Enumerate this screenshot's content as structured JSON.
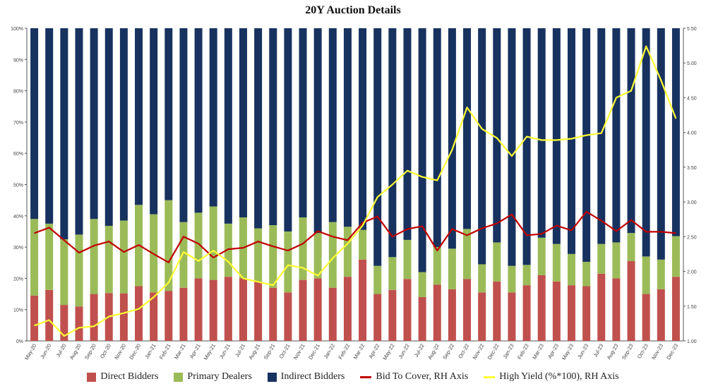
{
  "chart_data": {
    "type": "bar",
    "title": "20Y Auction Details",
    "categories": [
      "May-20",
      "Jun-20",
      "Jul-20",
      "Aug-20",
      "Sep-20",
      "Oct-20",
      "Nov-20",
      "Dec-20",
      "Jan-21",
      "Feb-21",
      "Mar-21",
      "Apr-21",
      "May-21",
      "Jun-21",
      "Jul-21",
      "Aug-21",
      "Sep-21",
      "Oct-21",
      "Nov-21",
      "Dec-21",
      "Jan-22",
      "Feb-22",
      "Mar-22",
      "Apr-22",
      "May-22",
      "Jun-22",
      "Jul-22",
      "Aug-22",
      "Sep-22",
      "Oct-22",
      "Nov-22",
      "Dec-22",
      "Jan-23",
      "Feb-23",
      "Mar-23",
      "Apr-23",
      "May-23",
      "Jun-23",
      "Jul-23",
      "Aug-23",
      "Sep-23",
      "Oct-23",
      "Nov-23",
      "Dec-23"
    ],
    "x_tick_labels": [
      "May-20",
      "Jun-20",
      "Jul-20",
      "Aug-20",
      "Sep-20",
      "Oct-20",
      "Nov-20",
      "Dec-20",
      "Jan-21",
      "Feb-21",
      "Mar-21",
      "Apr-21",
      "May-21",
      "Jun-21",
      "Jul-21",
      "Aug-21",
      "Sep-21",
      "Oct-21",
      "Nov-21",
      "Dec-21",
      "Jan-22",
      "Feb-22",
      "Mar-22",
      "Apr-22",
      "May-22",
      "Jun-22",
      "Jul-22",
      "Aug-22",
      "Sep-22",
      "Oct-22",
      "Nov-22",
      "Dec-22",
      "Jan-23",
      "Feb-23",
      "Mar-23",
      "Apr-23",
      "May-23",
      "Jun-23",
      "Jul-23",
      "Aug-23",
      "Sep-23",
      "Oct-23",
      "Nov-23",
      "Dec-23"
    ],
    "left_axis": {
      "ylim": [
        0,
        100
      ],
      "ticks": [
        "0%",
        "10%",
        "20%",
        "30%",
        "40%",
        "50%",
        "60%",
        "70%",
        "80%",
        "90%",
        "100%"
      ]
    },
    "right_axis": {
      "ylim": [
        1.0,
        5.5
      ],
      "ticks": [
        "1.00",
        "1.50",
        "2.00",
        "2.50",
        "3.00",
        "3.50",
        "4.00",
        "4.50",
        "5.00",
        "5.50"
      ]
    },
    "grid": false,
    "legend_position": "bottom",
    "series": [
      {
        "name": "Direct Bidders",
        "kind": "stacked-bar",
        "axis": "left",
        "color": "#c0504d",
        "values": [
          14.5,
          16.3,
          11.5,
          11.0,
          15.0,
          15.3,
          15.2,
          17.5,
          15.5,
          16.0,
          17.0,
          20.0,
          19.5,
          20.5,
          20.0,
          19.0,
          17.0,
          15.5,
          19.5,
          20.0,
          17.0,
          20.5,
          26.0,
          15.0,
          16.3,
          19.8,
          14.0,
          18.0,
          16.5,
          19.8,
          15.5,
          19.0,
          15.5,
          17.8,
          21.0,
          19.0,
          17.8,
          17.5,
          21.5,
          20.0,
          25.5,
          15.0,
          16.5,
          20.5
        ]
      },
      {
        "name": "Primary Dealers",
        "kind": "stacked-bar",
        "axis": "left",
        "color": "#9bbb59",
        "values": [
          24.5,
          21.2,
          21.0,
          23.0,
          24.0,
          21.5,
          23.3,
          26.0,
          25.0,
          29.0,
          21.0,
          21.0,
          23.5,
          17.0,
          19.5,
          17.0,
          20.0,
          19.5,
          20.0,
          14.5,
          21.0,
          16.0,
          9.5,
          9.0,
          10.5,
          12.5,
          8.0,
          12.0,
          13.0,
          16.0,
          9.0,
          12.5,
          8.5,
          6.5,
          12.0,
          12.0,
          10.0,
          7.8,
          9.5,
          11.5,
          9.0,
          12.0,
          9.5,
          13.0
        ]
      },
      {
        "name": "Indirect Bidders",
        "kind": "stacked-bar",
        "axis": "left",
        "color": "#17325f",
        "values": [
          61.0,
          62.5,
          67.5,
          66.0,
          61.0,
          63.2,
          61.5,
          56.5,
          59.5,
          55.0,
          62.0,
          59.0,
          57.0,
          62.5,
          60.5,
          64.0,
          63.0,
          65.0,
          60.5,
          65.5,
          62.0,
          63.5,
          64.5,
          76.0,
          73.2,
          67.7,
          78.0,
          70.0,
          70.5,
          64.2,
          75.5,
          68.5,
          76.0,
          75.7,
          67.0,
          69.0,
          72.2,
          74.7,
          69.0,
          68.5,
          65.5,
          73.0,
          74.0,
          66.5
        ]
      },
      {
        "name": "Bid To Cover, RH Axis",
        "kind": "line",
        "axis": "right",
        "color": "#c00000",
        "values": [
          2.55,
          2.63,
          2.45,
          2.27,
          2.37,
          2.43,
          2.28,
          2.38,
          2.25,
          2.13,
          2.5,
          2.4,
          2.2,
          2.32,
          2.34,
          2.43,
          2.36,
          2.3,
          2.4,
          2.58,
          2.5,
          2.45,
          2.7,
          2.79,
          2.5,
          2.61,
          2.65,
          2.3,
          2.61,
          2.52,
          2.62,
          2.69,
          2.82,
          2.52,
          2.54,
          2.66,
          2.59,
          2.86,
          2.73,
          2.58,
          2.74,
          2.57,
          2.57,
          2.55
        ]
      },
      {
        "name": "High Yield (%*100), RH Axis",
        "kind": "line",
        "axis": "right",
        "color": "#ffff33",
        "values": [
          1.22,
          1.3,
          1.07,
          1.19,
          1.21,
          1.35,
          1.4,
          1.46,
          1.63,
          1.84,
          2.28,
          2.15,
          2.3,
          2.14,
          1.9,
          1.85,
          1.8,
          2.09,
          2.05,
          1.94,
          2.19,
          2.4,
          2.66,
          3.07,
          3.25,
          3.45,
          3.36,
          3.31,
          3.75,
          4.36,
          4.05,
          3.92,
          3.66,
          3.94,
          3.89,
          3.89,
          3.91,
          3.96,
          3.99,
          4.5,
          4.6,
          5.24,
          4.75,
          4.2
        ]
      }
    ]
  }
}
